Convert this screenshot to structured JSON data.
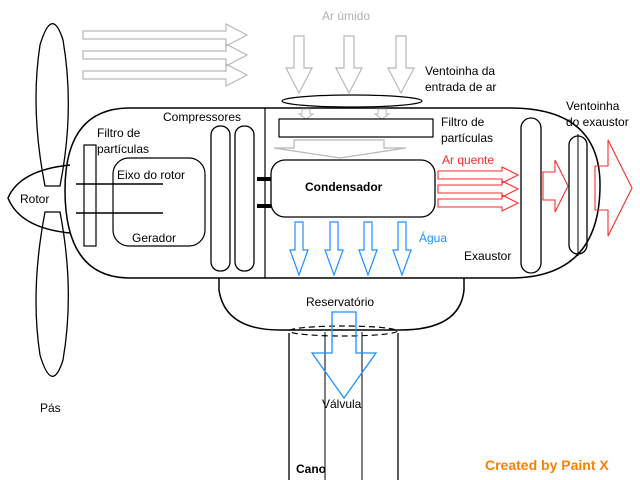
{
  "labels": {
    "rotor": "Rotor",
    "pas": "Pás",
    "filtro_esq": [
      "Filtro de",
      "partículas"
    ],
    "eixo": "Eixo do rotor",
    "gerador": "Gerador",
    "compressores": "Compressores",
    "condensador": "Condensador",
    "agua": "Água",
    "ar_umido": "Ar úmido",
    "ventoinha_entrada": [
      "Ventoinha da",
      "entrada de ar"
    ],
    "filtro_dir": [
      "Filtro de",
      "partículas"
    ],
    "ar_quente": "Ar quente",
    "ventoinha_exaustor": [
      "Ventoinha",
      "do exaustor"
    ],
    "exaustor": "Exaustor",
    "reservatorio": "Reservatório",
    "valvula": "Válvula",
    "cano": "Cano",
    "credit": "Created by Paint X"
  },
  "colors": {
    "water": "#1e90ff",
    "hot_air": "#ff2a2a",
    "incoming_air": "#b8b8b8",
    "credit": "#ff8000"
  },
  "icons": {
    "air_arrows": "hollow-arrow-right",
    "moist_air_arrows": "hollow-arrow-down",
    "water_arrows": "hollow-arrow-down",
    "hot_air_arrows": "hollow-arrow-right"
  }
}
